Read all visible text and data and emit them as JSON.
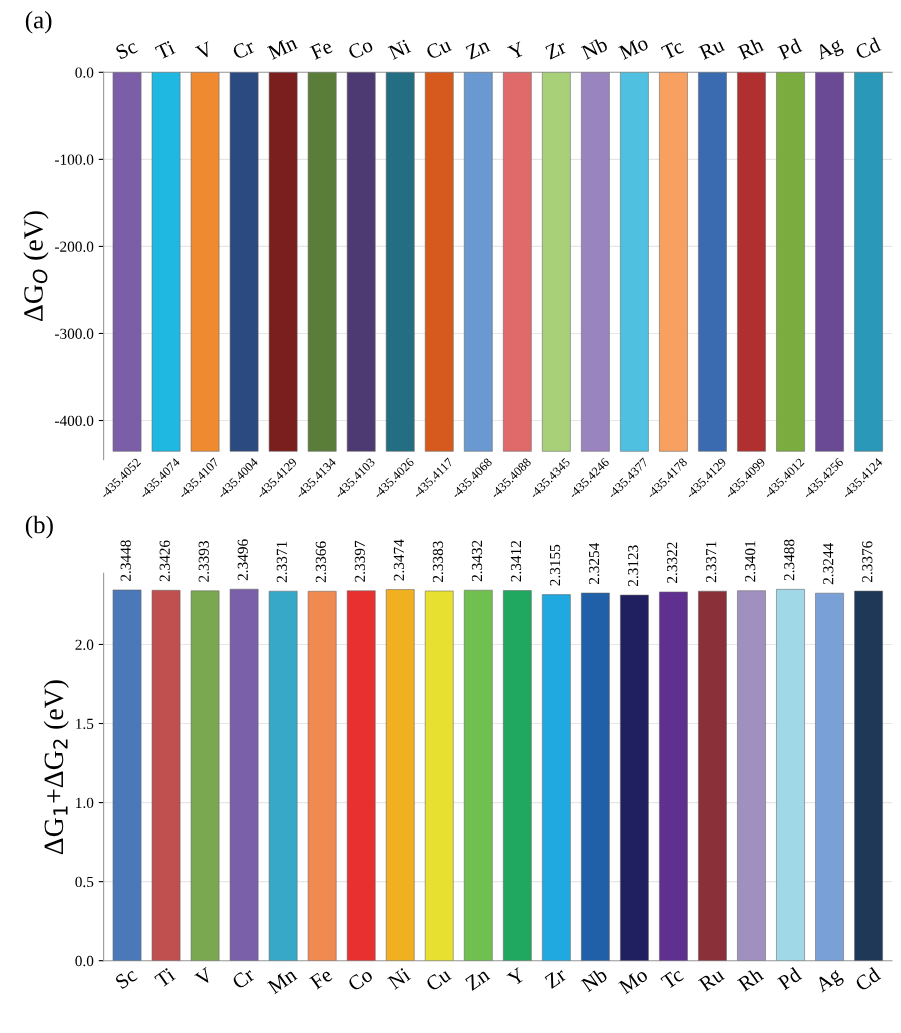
{
  "chart_data": [
    {
      "type": "bar",
      "title": "(a)",
      "ylabel": "ΔG$_{O}$ (eV)",
      "categories": [
        "Sc",
        "Ti",
        "V",
        "Cr",
        "Mn",
        "Fe",
        "Co",
        "Ni",
        "Cu",
        "Zn",
        "Y",
        "Zr",
        "Nb",
        "Mo",
        "Tc",
        "Ru",
        "Rh",
        "Pd",
        "Ag",
        "Cd"
      ],
      "values": [
        -435.4052,
        -435.4074,
        -435.4107,
        -435.4004,
        -435.4129,
        -435.4134,
        -435.4103,
        -435.4026,
        -435.4117,
        -435.4068,
        -435.4088,
        -435.4345,
        -435.4246,
        -435.4377,
        -435.4178,
        -435.4129,
        -435.4099,
        -435.4012,
        -435.4256,
        -435.4124
      ],
      "colors": [
        "#7b5ea7",
        "#1fb8e0",
        "#f08a30",
        "#2a4a80",
        "#7a1e1e",
        "#5a7e3a",
        "#4e3a72",
        "#236e82",
        "#d65a1e",
        "#6a98d0",
        "#e06a6a",
        "#a8d078",
        "#9a84c0",
        "#50c0e0",
        "#f8a060",
        "#3a6ab0",
        "#b03030",
        "#7aac40",
        "#6a4a94",
        "#2a98b8"
      ],
      "ylim": [
        -445,
        0
      ],
      "yticks": [
        {
          "value": 0,
          "label": "0.0"
        },
        {
          "value": -100,
          "label": "-100.0"
        },
        {
          "value": -200,
          "label": "-200.0"
        },
        {
          "value": -300,
          "label": "-300.0"
        },
        {
          "value": -400,
          "label": "-400.0"
        }
      ],
      "grid": "y",
      "data_labels": true
    },
    {
      "type": "bar",
      "title": "(b)",
      "ylabel": "ΔG$_{1}$+ΔG$_{2}$ (eV)",
      "categories": [
        "Sc",
        "Ti",
        "V",
        "Cr",
        "Mn",
        "Fe",
        "Co",
        "Ni",
        "Cu",
        "Zn",
        "Y",
        "Zr",
        "Nb",
        "Mo",
        "Tc",
        "Ru",
        "Rh",
        "Pd",
        "Ag",
        "Cd"
      ],
      "values": [
        2.3448,
        2.3426,
        2.3393,
        2.3496,
        2.3371,
        2.3366,
        2.3397,
        2.3474,
        2.3383,
        2.3432,
        2.3412,
        2.3155,
        2.3254,
        2.3123,
        2.3322,
        2.3371,
        2.3401,
        2.3488,
        2.3244,
        2.3376
      ],
      "colors": [
        "#4a78b8",
        "#c05050",
        "#7aa850",
        "#7a60a8",
        "#38a8c8",
        "#f08a50",
        "#e83030",
        "#f0b020",
        "#e8e030",
        "#70c050",
        "#20a860",
        "#20a8e0",
        "#2060a8",
        "#202060",
        "#603090",
        "#8a3038",
        "#a090c0",
        "#a0d8e8",
        "#7aa0d8",
        "#203858"
      ],
      "ylim": [
        0,
        2.45
      ],
      "yticks": [
        {
          "value": 0,
          "label": "0.0"
        },
        {
          "value": 0.5,
          "label": "0.5"
        },
        {
          "value": 1.0,
          "label": "1.0"
        },
        {
          "value": 1.5,
          "label": "1.5"
        },
        {
          "value": 2.0,
          "label": "2.0"
        }
      ],
      "grid": "y",
      "data_labels": true
    }
  ]
}
